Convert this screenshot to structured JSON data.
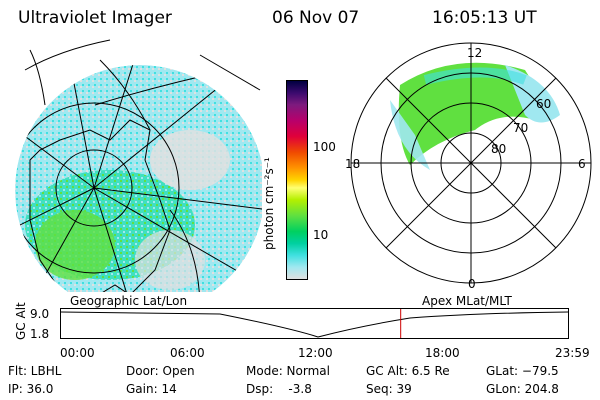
{
  "header": {
    "instrument": "Ultraviolet Imager",
    "date": "06 Nov 07",
    "time": "16:05:13 UT"
  },
  "geo_panel": {
    "label": "Geographic Lat/Lon"
  },
  "colorbar": {
    "unit_label": "photon cm⁻²s⁻¹",
    "ticks": [
      "100",
      "10"
    ],
    "colors": [
      "#000040",
      "#3b0a6e",
      "#7d1a7e",
      "#b8006b",
      "#e0003a",
      "#f04a00",
      "#ff9400",
      "#ffd400",
      "#ffff73",
      "#b4f000",
      "#60e040",
      "#00d060",
      "#00d0a0",
      "#40e0e0",
      "#a0e8f0",
      "#e0e0e0"
    ]
  },
  "polar_panel": {
    "label": "Apex MLat/MLT",
    "mlt_labels": {
      "top": "12",
      "right": "6",
      "bottom": "0",
      "left": "18"
    },
    "mlat_labels": [
      "60",
      "70",
      "80"
    ]
  },
  "timeline": {
    "ylabel": "GC Alt",
    "ytick_top": "9.0",
    "ytick_bottom": "1.8",
    "xticks": [
      "00:00",
      "06:00",
      "12:00",
      "18:00",
      "23:59"
    ],
    "current_time_fraction": 0.67
  },
  "info": {
    "filter": "Flt: LBHL",
    "ip": "IP: 36.0",
    "door": "Door: Open",
    "gain": "Gain: 14",
    "mode": "Mode: Normal",
    "dsp": "Dsp:    -3.8",
    "gc_alt": "GC Alt: 6.5 Re",
    "seq": "Seq: 39",
    "glat": "GLat: −79.5",
    "glon": "GLon: 204.8"
  }
}
